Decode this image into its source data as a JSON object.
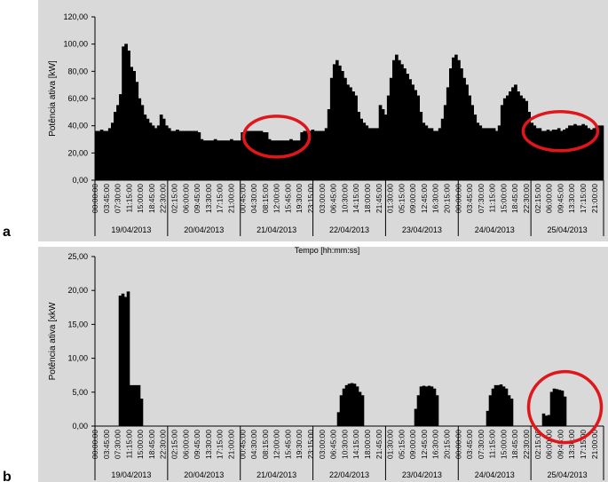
{
  "chart_data": [
    {
      "type": "area",
      "panel_label": "a",
      "title": "",
      "xlabel": "Tempo [hh:mm:ss]",
      "ylabel": "Potência ativa [kW]",
      "ylim": [
        0,
        120
      ],
      "yticks": [
        "0,00",
        "20,00",
        "40,00",
        "60,00",
        "80,00",
        "100,00",
        "120,00"
      ],
      "groups": [
        {
          "date": "19/04/2013",
          "times": [
            "00:00:00",
            "03:45:00",
            "07:30:00",
            "11:15:00",
            "15:00:00",
            "18:45:00",
            "22:30:00"
          ]
        },
        {
          "date": "20/04/2013",
          "times": [
            "02:15:00",
            "06:00:00",
            "09:45:00",
            "13:30:00",
            "17:15:00",
            "21:00:00"
          ]
        },
        {
          "date": "21/04/2013",
          "times": [
            "00:45:00",
            "04:30:00",
            "08:15:00",
            "12:00:00",
            "15:45:00",
            "19:30:00",
            "23:15:00"
          ]
        },
        {
          "date": "22/04/2013",
          "times": [
            "03:00:00",
            "06:45:00",
            "10:30:00",
            "14:15:00",
            "18:00:00",
            "21:45:00"
          ]
        },
        {
          "date": "23/04/2013",
          "times": [
            "01:30:00",
            "05:15:00",
            "09:00:00",
            "12:45:00",
            "16:30:00",
            "20:15:00"
          ]
        },
        {
          "date": "24/04/2013",
          "times": [
            "00:00:00",
            "03:45:00",
            "07:30:00",
            "11:15:00",
            "15:00:00",
            "18:45:00",
            "22:30:00"
          ]
        },
        {
          "date": "25/04/2013",
          "times": [
            "02:15:00",
            "06:00:00",
            "09:45:00",
            "13:30:00",
            "17:15:00",
            "21:00:00"
          ]
        }
      ],
      "series": [
        {
          "values": [
            36,
            36,
            37,
            36,
            36,
            38,
            42,
            50,
            55,
            63,
            98,
            100,
            95,
            83,
            80,
            72,
            60,
            55,
            48,
            45,
            42,
            40,
            38,
            40,
            48,
            45,
            40,
            38,
            36,
            36,
            37,
            36,
            36,
            36,
            36,
            36,
            36,
            36,
            35,
            30,
            29,
            29,
            29,
            29,
            30,
            29,
            29,
            29,
            29,
            29,
            30,
            29,
            29,
            29,
            35,
            35,
            36,
            36,
            36,
            36,
            36,
            36,
            35,
            35,
            30,
            29,
            29,
            29,
            29,
            29,
            29,
            29,
            30,
            29,
            29,
            29,
            35,
            36,
            36,
            36,
            37,
            36,
            36,
            36,
            36,
            38,
            52,
            75,
            85,
            88,
            84,
            80,
            75,
            70,
            68,
            65,
            62,
            50,
            45,
            42,
            40,
            38,
            38,
            38,
            38,
            55,
            52,
            48,
            62,
            75,
            88,
            92,
            88,
            85,
            82,
            78,
            74,
            70,
            66,
            62,
            50,
            42,
            40,
            38,
            38,
            36,
            36,
            38,
            45,
            55,
            68,
            82,
            90,
            92,
            88,
            82,
            75,
            70,
            62,
            55,
            48,
            42,
            40,
            38,
            38,
            38,
            38,
            38,
            36,
            40,
            55,
            60,
            62,
            65,
            68,
            70,
            65,
            62,
            60,
            58,
            50,
            42,
            40,
            38,
            38,
            36,
            36,
            37,
            36,
            37,
            37,
            38,
            36,
            37,
            38,
            40,
            40,
            41,
            40,
            40,
            41,
            40,
            38,
            37,
            38,
            40,
            40,
            40
          ]
        }
      ],
      "annotations": [
        {
          "type": "circle",
          "x_center": "21/04/2013 12:00:00",
          "y_center": 32
        },
        {
          "type": "circle",
          "x_center": "25/04/2013 09:45:00",
          "y_center": 36
        }
      ]
    },
    {
      "type": "area",
      "panel_label": "b",
      "title": "Tempo [hh:mm:ss]",
      "xlabel": "",
      "ylabel": "Potência ativa [xkW",
      "ylim": [
        0,
        25
      ],
      "yticks": [
        "0,00",
        "5,00",
        "10,00",
        "15,00",
        "20,00",
        "25,00"
      ],
      "groups": [
        {
          "date": "19/04/2013",
          "times": [
            "00:00:00",
            "03:45:00",
            "07:30:00",
            "11:15:00",
            "15:00:00",
            "18:45:00",
            "22:30:00"
          ]
        },
        {
          "date": "20/04/2013",
          "times": [
            "02:15:00",
            "06:00:00",
            "09:45:00",
            "13:30:00",
            "17:15:00",
            "21:00:00"
          ]
        },
        {
          "date": "21/04/2013",
          "times": [
            "00:45:00",
            "04:30:00",
            "08:15:00",
            "12:00:00",
            "15:45:00",
            "19:30:00",
            "23:15:00"
          ]
        },
        {
          "date": "22/04/2013",
          "times": [
            "03:00:00",
            "06:45:00",
            "10:30:00",
            "14:15:00",
            "18:00:00",
            "21:45:00"
          ]
        },
        {
          "date": "23/04/2013",
          "times": [
            "01:30:00",
            "05:15:00",
            "09:00:00",
            "12:45:00",
            "16:30:00",
            "20:15:00"
          ]
        },
        {
          "date": "24/04/2013",
          "times": [
            "00:00:00",
            "03:45:00",
            "07:30:00",
            "11:15:00",
            "15:00:00",
            "18:45:00",
            "22:30:00"
          ]
        },
        {
          "date": "25/04/2013",
          "times": [
            "02:15:00",
            "06:00:00",
            "09:45:00",
            "13:30:00",
            "17:15:00",
            "21:00:00"
          ]
        }
      ],
      "series": [
        {
          "values": [
            0,
            0,
            0,
            0,
            0,
            0,
            0,
            0,
            0,
            19.2,
            19.5,
            19.0,
            19.8,
            6,
            6,
            6,
            6,
            4,
            0,
            0,
            0,
            0,
            0,
            0,
            0,
            0,
            0,
            0,
            0,
            0,
            0,
            0,
            0,
            0,
            0,
            0,
            0,
            0,
            0,
            0,
            0,
            0,
            0,
            0,
            0,
            0,
            0,
            0,
            0,
            0,
            0,
            0,
            0,
            0,
            0,
            0,
            0,
            0,
            0,
            0,
            0,
            0,
            0,
            0,
            0,
            0,
            0,
            0,
            0,
            0,
            0,
            0,
            0,
            0,
            0,
            0,
            0,
            0,
            0,
            0,
            0,
            0,
            0,
            0,
            0,
            0,
            0,
            0,
            0,
            0,
            0,
            2,
            4.5,
            5.5,
            6,
            6.2,
            6.3,
            6.2,
            5.8,
            5,
            4.5,
            0,
            0,
            0,
            0,
            0,
            0,
            0,
            0,
            0,
            0,
            0,
            0,
            0,
            0,
            0,
            0,
            0,
            0,
            0,
            2.5,
            4.5,
            5.8,
            5.9,
            5.8,
            5.9,
            5.8,
            5.5,
            4.5,
            0,
            0,
            0,
            0,
            0,
            0,
            0,
            0,
            0,
            0,
            0,
            0,
            0,
            0,
            0,
            0,
            0,
            0,
            2.2,
            4.5,
            5.5,
            6,
            6,
            6.1,
            5.8,
            5.5,
            4.5,
            4,
            0,
            0,
            0,
            0,
            0,
            0,
            0,
            0,
            0,
            0,
            0,
            1.8,
            1.5,
            1.6,
            5,
            5.5,
            5.4,
            5.3,
            5.2,
            4.3,
            0,
            0,
            0,
            0,
            0,
            0,
            0,
            0,
            0,
            0,
            0,
            0,
            0,
            0
          ]
        }
      ],
      "annotations": [
        {
          "type": "circle",
          "x_center": "25/04/2013 11:15:00",
          "y_center": 2.8
        }
      ]
    }
  ]
}
